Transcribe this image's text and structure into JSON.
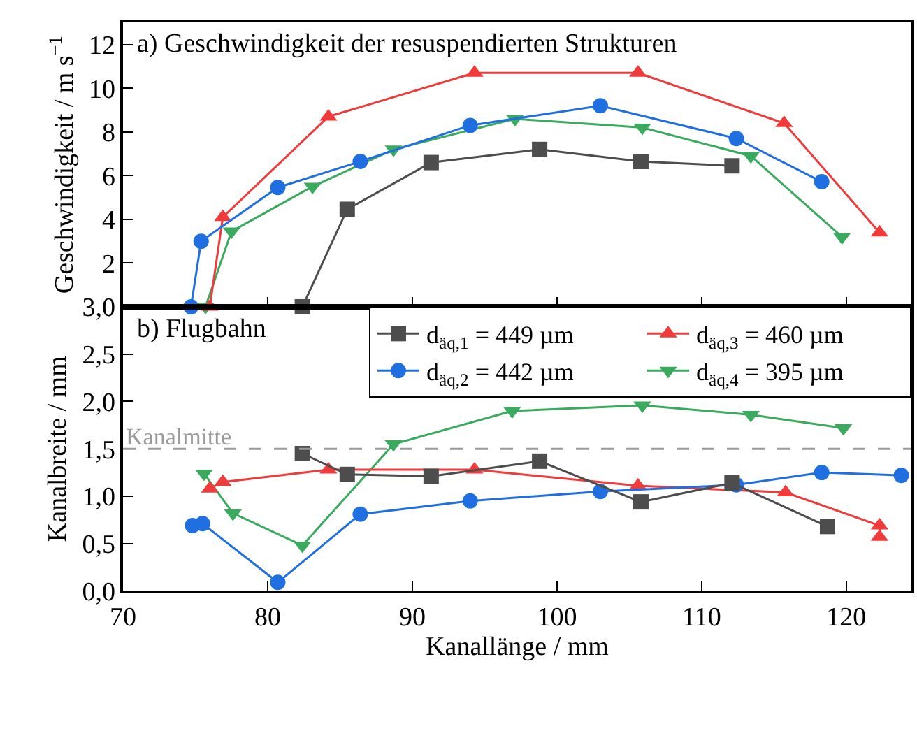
{
  "chart_data": [
    {
      "type": "line",
      "title": "a) Geschwindigkeit der resuspendierten Strukturen",
      "ylabel": "Geschwindigkeit / m s$^{−1}$",
      "xlim": [
        70,
        124.5
      ],
      "xticks": [
        70,
        80,
        90,
        100,
        110,
        120
      ],
      "ylim": [
        0,
        13
      ],
      "yticks": [
        {
          "value": 0,
          "label": null
        },
        2,
        4,
        6,
        8,
        10,
        12
      ],
      "tick_labels": "y",
      "grid": false,
      "legend": false,
      "line_style": "solid",
      "series": [
        {
          "color": "#4d4d4d",
          "marker": "square",
          "x": [
            82.4,
            85.5,
            91.3,
            98.8,
            105.8,
            112.1
          ],
          "values": [
            0,
            4.46,
            6.6,
            7.2,
            6.65,
            6.45
          ]
        },
        {
          "color": "#1f6fe0",
          "marker": "circle",
          "x": [
            74.7,
            75.4,
            80.7,
            86.4,
            94.0,
            103.0,
            112.4,
            118.3
          ],
          "values": [
            0,
            3.0,
            5.46,
            6.65,
            8.3,
            9.2,
            7.7,
            5.72
          ]
        },
        {
          "color": "#ef3b3b",
          "marker": "triangle",
          "x": [
            76.0,
            76.9,
            84.2,
            94.3,
            105.6,
            115.7,
            122.3
          ],
          "values": [
            0,
            4.1,
            8.7,
            10.7,
            10.7,
            8.4,
            3.4
          ]
        },
        {
          "color": "#3aaa5e",
          "marker": "triangle-down",
          "x": [
            75.7,
            77.5,
            83.1,
            88.7,
            97.1,
            105.9,
            113.4,
            119.7
          ],
          "values": [
            0,
            3.45,
            5.5,
            7.2,
            8.6,
            8.2,
            6.9,
            3.2
          ]
        }
      ]
    },
    {
      "type": "line",
      "title": "b) Flugbahn",
      "xlabel": "Kanallänge / mm",
      "ylabel": "Kanalbreite / mm",
      "xlim": [
        70,
        124.5
      ],
      "xticks": [
        70,
        80,
        90,
        100,
        110,
        120
      ],
      "ylim": [
        0,
        3
      ],
      "yticks": [
        {
          "value": 0,
          "label": "0,0"
        },
        {
          "value": 0.5,
          "label": "0,5"
        },
        {
          "value": 1,
          "label": "1,0"
        },
        {
          "value": 1.5,
          "label": "1,5"
        },
        {
          "value": 2,
          "label": "2,0"
        },
        {
          "value": 2.5,
          "label": "2,5"
        },
        {
          "value": 3,
          "label": "3,0"
        }
      ],
      "grid": false,
      "legend": "top right",
      "line_style": "solid",
      "ref_lines": [
        {
          "axis": "y",
          "value": 1.5,
          "label": "Kanalmitte",
          "color": "#999999",
          "line_style": "dashed"
        }
      ],
      "series": [
        {
          "name": "d$_{äq,1}$ = 449 µm",
          "color": "#4d4d4d",
          "marker": "square",
          "x": [
            82.4,
            85.5,
            91.3,
            98.8,
            105.8,
            112.1,
            118.7
          ],
          "values": [
            1.45,
            1.23,
            1.21,
            1.37,
            0.94,
            1.14,
            0.68
          ]
        },
        {
          "name": "d$_{äq,2}$ = 442 µm",
          "color": "#1f6fe0",
          "marker": "circle",
          "x": [
            74.8,
            75.5,
            80.7,
            86.4,
            94.0,
            103.0,
            112.4,
            118.3,
            123.8
          ],
          "values": [
            0.69,
            0.71,
            0.09,
            0.81,
            0.95,
            1.05,
            1.12,
            1.25,
            1.22
          ]
        },
        {
          "name": "d$_{äq,3}$ = 460 µm",
          "color": "#ef3b3b",
          "marker": "triangle",
          "x": [
            76.0,
            76.9,
            84.2,
            94.3,
            105.6,
            115.8,
            122.3,
            122.3
          ],
          "values": [
            1.08,
            1.15,
            1.28,
            1.28,
            1.11,
            1.04,
            0.69,
            0.57
          ]
        },
        {
          "name": "d$_{äq,4}$ = 395 µm",
          "color": "#3aaa5e",
          "marker": "triangle-down",
          "x": [
            75.6,
            77.6,
            82.4,
            88.7,
            96.9,
            105.9,
            113.4,
            119.8
          ],
          "values": [
            1.24,
            0.82,
            0.48,
            1.55,
            1.9,
            1.96,
            1.86,
            1.72
          ]
        }
      ]
    }
  ]
}
